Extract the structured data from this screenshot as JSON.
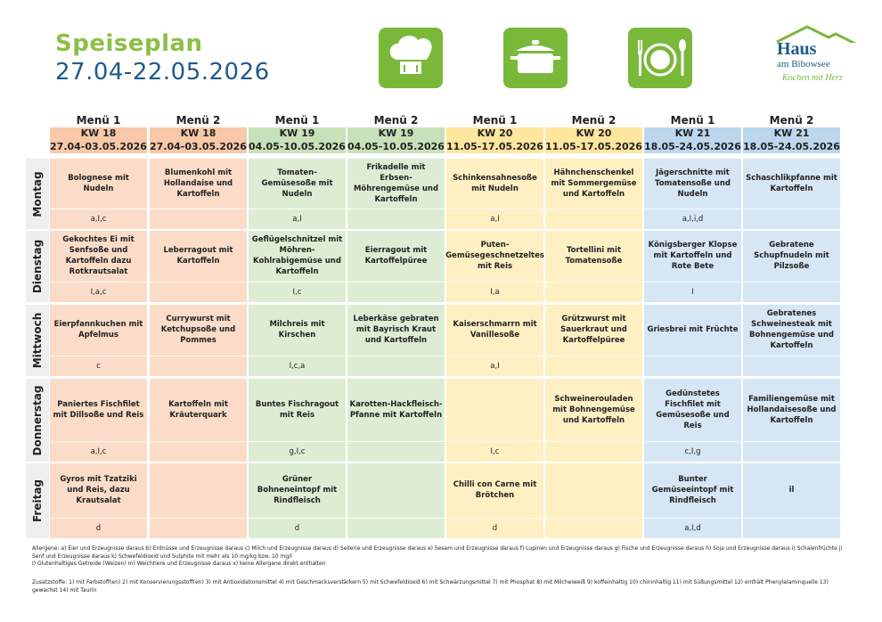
{
  "header": {
    "title": "Speiseplan",
    "dates": "27.04-22.05.2026",
    "icons": [
      "chef-hat-icon",
      "cooking-pot-icon",
      "plate-cutlery-icon"
    ],
    "logo": {
      "name": "Haus",
      "sub": "am Bibowsee",
      "slogan": "Kochen mit Herz"
    }
  },
  "colors": {
    "kw18": "#fbdcc8",
    "kw18_head": "#f8c8a8",
    "kw19": "#dcedd3",
    "kw19_head": "#c7e2b9",
    "kw20": "#fff0c4",
    "kw20_head": "#ffe59e",
    "kw21": "#d6e6f4",
    "kw21_head": "#bcd6ee",
    "title_green": "#8cc045",
    "title_blue": "#1f5a8c"
  },
  "columns": [
    {
      "menu": "Menü 1",
      "kw": "KW 18",
      "range": "27.04-03.05.2026",
      "week": "kw18"
    },
    {
      "menu": "Menü 2",
      "kw": "KW 18",
      "range": "27.04-03.05.2026",
      "week": "kw18"
    },
    {
      "menu": "Menü 1",
      "kw": "KW 19",
      "range": "04.05-10.05.2026",
      "week": "kw19"
    },
    {
      "menu": "Menü 2",
      "kw": "KW 19",
      "range": "04.05-10.05.2026",
      "week": "kw19"
    },
    {
      "menu": "Menü 1",
      "kw": "KW 20",
      "range": "11.05-17.05.2026",
      "week": "kw20"
    },
    {
      "menu": "Menü 2",
      "kw": "KW 20",
      "range": "11.05-17.05.2026",
      "week": "kw20"
    },
    {
      "menu": "Menü 1",
      "kw": "KW 21",
      "range": "18.05-24.05.2026",
      "week": "kw21"
    },
    {
      "menu": "Menü 2",
      "kw": "KW 21",
      "range": "18.05-24.05.2026",
      "week": "kw21"
    }
  ],
  "days": [
    {
      "name": "Montag",
      "cells": [
        {
          "dish": "Bolognese mit Nudeln",
          "allergens": "a,I,c"
        },
        {
          "dish": "Blumenkohl mit Hollandaise und Kartoffeln",
          "allergens": ""
        },
        {
          "dish": "Tomaten-Gemüsesoße mit Nudeln",
          "allergens": "a,I"
        },
        {
          "dish": "Frikadelle mit Erbsen-Möhrengemüse und Kartoffeln",
          "allergens": ""
        },
        {
          "dish": "Schinkensahnesoße mit Nudeln",
          "allergens": "a,I"
        },
        {
          "dish": "Hähnchenschenkel mit Sommergemüse und Kartoffeln",
          "allergens": ""
        },
        {
          "dish": "Jägerschnitte mit Tomatensoße und Nudeln",
          "allergens": "a,I,i,d"
        },
        {
          "dish": "Schaschlikpfanne mit Kartoffeln",
          "allergens": ""
        }
      ]
    },
    {
      "name": "Dienstag",
      "cells": [
        {
          "dish": "Gekochtes Ei mit Senfsoße und Kartoffeln dazu Rotkrautsalat",
          "allergens": "I,a,c"
        },
        {
          "dish": "Leberragout mit Kartoffeln",
          "allergens": ""
        },
        {
          "dish": "Geflügelschnitzel mit Möhren-Kohlrabigemüse und Kartoffeln",
          "allergens": "I,c"
        },
        {
          "dish": "Eierragout mit Kartoffelpüree",
          "allergens": ""
        },
        {
          "dish": "Puten-Gemüsegeschnetzeltes mit Reis",
          "allergens": "I,a"
        },
        {
          "dish": "Tortellini mit Tomatensoße",
          "allergens": ""
        },
        {
          "dish": "Königsberger Klopse mit Kartoffeln und Rote Bete",
          "allergens": "I"
        },
        {
          "dish": "Gebratene Schupfnudeln mit Pilzsoße",
          "allergens": ""
        }
      ]
    },
    {
      "name": "Mittwoch",
      "cells": [
        {
          "dish": "Eierpfannkuchen mit Apfelmus",
          "allergens": "c"
        },
        {
          "dish": "Currywurst mit Ketchupsoße und Pommes",
          "allergens": ""
        },
        {
          "dish": "Milchreis mit Kirschen",
          "allergens": "I,c,a"
        },
        {
          "dish": "Leberkäse gebraten mit Bayrisch Kraut und Kartoffeln",
          "allergens": ""
        },
        {
          "dish": "Kaiserschmarrn mit Vanillesoße",
          "allergens": "a,I"
        },
        {
          "dish": "Grützwurst mit Sauerkraut und Kartoffelpüree",
          "allergens": ""
        },
        {
          "dish": "Griesbrei mit Früchte",
          "allergens": ""
        },
        {
          "dish": "Gebratenes Schweinesteak mit Bohnengemüse und Kartoffeln",
          "allergens": ""
        }
      ]
    },
    {
      "name": "Donnerstag",
      "cells": [
        {
          "dish": "Paniertes Fischfilet mit Dillsoße und Reis",
          "allergens": "a,I,c"
        },
        {
          "dish": "Kartoffeln mit Kräuterquark",
          "allergens": ""
        },
        {
          "dish": "Buntes Fischragout mit Reis",
          "allergens": "g,I,c"
        },
        {
          "dish": "Karotten-Hackfleisch-Pfanne mit Kartoffeln",
          "allergens": ""
        },
        {
          "dish": "",
          "allergens": "I,c"
        },
        {
          "dish": "Schweinerouladen mit Bohnengemüse und Kartoffeln",
          "allergens": ""
        },
        {
          "dish": "Gedünstetes Fischfilet mit Gemüsesoße und Reis",
          "allergens": "c,I,g"
        },
        {
          "dish": "Familiengemüse mit Hollandaisesoße und Kartoffeln",
          "allergens": ""
        }
      ]
    },
    {
      "name": "Freitag",
      "cells": [
        {
          "dish": "Gyros mit Tzatziki und Reis, dazu Krautsalat",
          "allergens": "d"
        },
        {
          "dish": "",
          "allergens": ""
        },
        {
          "dish": "Grüner Bohneneintopf mit Rindfleisch",
          "allergens": "d"
        },
        {
          "dish": "",
          "allergens": ""
        },
        {
          "dish": "Chilli con Carne mit Brötchen",
          "allergens": "d"
        },
        {
          "dish": "",
          "allergens": ""
        },
        {
          "dish": "Bunter Gemüseeintopf mit Rindfleisch",
          "allergens": "a,I,d"
        },
        {
          "dish": "il",
          "allergens": ""
        }
      ]
    }
  ],
  "footer": {
    "allergene": "Allergene: a) Eier und Erzeugnisse daraus b) Erdnüsse und Erzeugnisse daraus c) Milch und Erzeugnisse daraus d) Sellerie und Erzeugnisse daraus e) Sesam und Erzeugnisse daraus f) Lupinen und Erzeugnisse daraus g) Fische und Erzeugnisse daraus h) Soja und Erzeugnisse daraus i) Schalenfrüchte j) Senf und Erzeugnisse daraus k) Schwefeldioxid und Sulphite mit mehr als 10 mg/kg bzw. 10 mg/l",
    "allergene2": "I) Glutenhaltiges Getreide (Weizen) m) Weichtiere und Erzeugnisse daraus x) keine Allergene direkt enthalten",
    "zusatz": "Zusatzstoffe: 1) mit Farbstoff(en) 2) mit Konservierungsstoff(en) 3) mit Antioxidationsmittel 4) mit Geschmacksverstärkern 5) mit Schwefeldioxid 6) mit Schwärzungsmittel 7) mit Phosphat 8) mit Milcheiweiß 9) koffeinhaltig 10) chininhaltig 11) mit Süßungsmittel 12) enthält Phenylalaminquelle 13) gewachst 14) mit Taurin"
  }
}
